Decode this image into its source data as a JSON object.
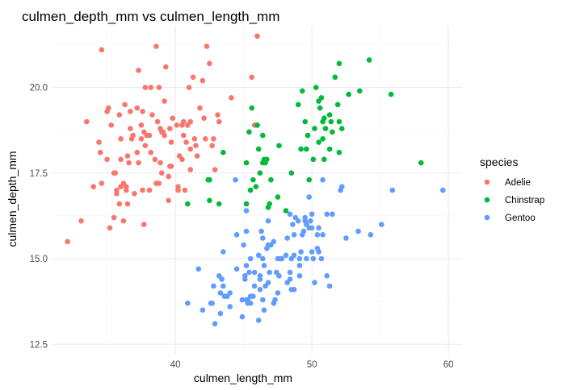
{
  "chart_data": {
    "type": "scatter",
    "title": "culmen_depth_mm vs culmen_length_mm",
    "xlabel": "culmen_length_mm",
    "ylabel": "culmen_depth_mm",
    "xlim": [
      31.0,
      61.0
    ],
    "ylim": [
      12.2,
      21.8
    ],
    "x_ticks": [
      40,
      50,
      60
    ],
    "y_ticks": [
      12.5,
      15.0,
      17.5,
      20.0
    ],
    "y_tick_labels": [
      "12.5",
      "15.0",
      "17.5",
      "20.0"
    ],
    "grid": true,
    "legend": {
      "title": "species",
      "position": "right"
    },
    "series": [
      {
        "name": "Adelie",
        "color": "#F8766D",
        "points": [
          [
            32.1,
            15.5
          ],
          [
            33.1,
            16.1
          ],
          [
            33.5,
            19.0
          ],
          [
            34.0,
            17.1
          ],
          [
            34.4,
            18.4
          ],
          [
            34.5,
            18.1
          ],
          [
            34.6,
            21.1
          ],
          [
            34.6,
            17.2
          ],
          [
            35.0,
            17.9
          ],
          [
            35.0,
            19.3
          ],
          [
            35.1,
            19.4
          ],
          [
            35.2,
            15.9
          ],
          [
            35.3,
            18.9
          ],
          [
            35.5,
            16.2
          ],
          [
            35.5,
            17.5
          ],
          [
            35.6,
            17.5
          ],
          [
            35.7,
            16.9
          ],
          [
            35.7,
            17.0
          ],
          [
            35.9,
            16.6
          ],
          [
            35.9,
            19.2
          ],
          [
            36.0,
            18.5
          ],
          [
            36.0,
            17.9
          ],
          [
            36.0,
            17.1
          ],
          [
            36.2,
            16.1
          ],
          [
            36.2,
            17.2
          ],
          [
            36.3,
            19.5
          ],
          [
            36.4,
            17.0
          ],
          [
            36.4,
            17.1
          ],
          [
            36.5,
            18.0
          ],
          [
            36.5,
            16.6
          ],
          [
            36.6,
            17.8
          ],
          [
            36.7,
            19.3
          ],
          [
            36.7,
            18.8
          ],
          [
            36.8,
            18.5
          ],
          [
            36.9,
            18.6
          ],
          [
            37.0,
            16.9
          ],
          [
            37.2,
            18.1
          ],
          [
            37.2,
            19.4
          ],
          [
            37.3,
            20.5
          ],
          [
            37.3,
            17.8
          ],
          [
            37.5,
            18.9
          ],
          [
            37.5,
            18.5
          ],
          [
            37.6,
            19.3
          ],
          [
            37.6,
            17.0
          ],
          [
            37.7,
            18.7
          ],
          [
            37.7,
            16.0
          ],
          [
            37.8,
            18.3
          ],
          [
            37.8,
            20.0
          ],
          [
            37.9,
            18.6
          ],
          [
            38.1,
            18.6
          ],
          [
            38.1,
            17.0
          ],
          [
            38.2,
            18.1
          ],
          [
            38.2,
            20.0
          ],
          [
            38.3,
            19.2
          ],
          [
            38.5,
            17.9
          ],
          [
            38.6,
            21.2
          ],
          [
            38.6,
            17.2
          ],
          [
            38.7,
            19.0
          ],
          [
            38.8,
            17.2
          ],
          [
            38.8,
            20.0
          ],
          [
            38.9,
            17.8
          ],
          [
            38.9,
            18.8
          ],
          [
            39.0,
            17.5
          ],
          [
            39.0,
            18.7
          ],
          [
            39.1,
            18.7
          ],
          [
            39.2,
            19.6
          ],
          [
            39.2,
            18.6
          ],
          [
            39.3,
            20.6
          ],
          [
            39.5,
            17.4
          ],
          [
            39.5,
            16.7
          ],
          [
            39.6,
            17.7
          ],
          [
            39.6,
            18.8
          ],
          [
            39.7,
            18.4
          ],
          [
            39.7,
            17.7
          ],
          [
            39.8,
            19.1
          ],
          [
            40.1,
            18.9
          ],
          [
            40.2,
            17.0
          ],
          [
            40.2,
            17.1
          ],
          [
            40.3,
            18.0
          ],
          [
            40.5,
            17.9
          ],
          [
            40.5,
            18.9
          ],
          [
            40.6,
            18.6
          ],
          [
            40.6,
            19.0
          ],
          [
            40.7,
            17.0
          ],
          [
            40.8,
            18.4
          ],
          [
            40.9,
            18.9
          ],
          [
            41.0,
            20.0
          ],
          [
            41.1,
            17.6
          ],
          [
            41.1,
            19.0
          ],
          [
            41.1,
            18.2
          ],
          [
            41.3,
            20.3
          ],
          [
            41.4,
            18.5
          ],
          [
            41.5,
            18.3
          ],
          [
            41.6,
            18.0
          ],
          [
            41.8,
            19.4
          ],
          [
            42.0,
            20.2
          ],
          [
            42.1,
            19.1
          ],
          [
            42.2,
            18.5
          ],
          [
            42.3,
            21.2
          ],
          [
            42.5,
            20.7
          ],
          [
            42.7,
            18.3
          ],
          [
            42.8,
            18.5
          ],
          [
            42.9,
            17.6
          ],
          [
            43.1,
            19.2
          ],
          [
            43.2,
            19.0
          ],
          [
            44.1,
            19.7
          ],
          [
            45.6,
            20.3
          ],
          [
            45.8,
            18.9
          ],
          [
            46.0,
            21.5
          ],
          [
            46.0,
            18.9
          ]
        ]
      },
      {
        "name": "Chinstrap",
        "color": "#00BA38",
        "points": [
          [
            40.9,
            16.6
          ],
          [
            42.4,
            17.3
          ],
          [
            42.5,
            17.3
          ],
          [
            42.5,
            16.7
          ],
          [
            43.2,
            16.6
          ],
          [
            43.5,
            18.1
          ],
          [
            45.2,
            17.8
          ],
          [
            45.2,
            16.6
          ],
          [
            45.4,
            18.7
          ],
          [
            45.5,
            17.0
          ],
          [
            45.6,
            19.4
          ],
          [
            45.7,
            17.3
          ],
          [
            45.9,
            17.1
          ],
          [
            46.0,
            18.9
          ],
          [
            46.1,
            18.2
          ],
          [
            46.2,
            17.5
          ],
          [
            46.4,
            18.6
          ],
          [
            46.4,
            17.8
          ],
          [
            46.5,
            17.9
          ],
          [
            46.6,
            17.8
          ],
          [
            46.7,
            17.9
          ],
          [
            46.8,
            16.5
          ],
          [
            46.9,
            16.6
          ],
          [
            47.0,
            17.3
          ],
          [
            47.5,
            16.8
          ],
          [
            47.6,
            18.3
          ],
          [
            48.1,
            16.4
          ],
          [
            48.5,
            17.5
          ],
          [
            49.0,
            19.5
          ],
          [
            49.2,
            18.2
          ],
          [
            49.3,
            19.9
          ],
          [
            49.5,
            19.0
          ],
          [
            49.6,
            18.2
          ],
          [
            49.7,
            18.6
          ],
          [
            49.8,
            17.3
          ],
          [
            50.1,
            17.9
          ],
          [
            50.2,
            18.8
          ],
          [
            50.3,
            20.0
          ],
          [
            50.5,
            18.4
          ],
          [
            50.5,
            19.6
          ],
          [
            50.6,
            19.4
          ],
          [
            50.7,
            19.7
          ],
          [
            50.8,
            18.5
          ],
          [
            50.8,
            19.0
          ],
          [
            50.9,
            17.9
          ],
          [
            50.9,
            19.1
          ],
          [
            51.0,
            18.8
          ],
          [
            51.3,
            19.2
          ],
          [
            51.3,
            18.2
          ],
          [
            51.4,
            19.0
          ],
          [
            51.5,
            18.7
          ],
          [
            51.7,
            20.3
          ],
          [
            51.9,
            19.5
          ],
          [
            52.0,
            18.1
          ],
          [
            52.0,
            19.0
          ],
          [
            52.0,
            20.7
          ],
          [
            52.2,
            18.8
          ],
          [
            52.7,
            19.8
          ],
          [
            53.5,
            19.9
          ],
          [
            54.2,
            20.8
          ],
          [
            55.8,
            19.8
          ],
          [
            58.0,
            17.8
          ]
        ]
      },
      {
        "name": "Gentoo",
        "color": "#619CFF",
        "points": [
          [
            40.9,
            13.7
          ],
          [
            41.7,
            14.7
          ],
          [
            42.0,
            13.5
          ],
          [
            42.6,
            13.7
          ],
          [
            42.7,
            13.7
          ],
          [
            42.8,
            14.2
          ],
          [
            42.9,
            13.1
          ],
          [
            43.2,
            14.5
          ],
          [
            43.3,
            14.0
          ],
          [
            43.3,
            13.4
          ],
          [
            43.4,
            14.4
          ],
          [
            43.5,
            14.2
          ],
          [
            43.5,
            15.2
          ],
          [
            43.6,
            13.9
          ],
          [
            43.8,
            13.9
          ],
          [
            44.0,
            13.6
          ],
          [
            44.4,
            17.3
          ],
          [
            44.5,
            14.7
          ],
          [
            44.5,
            15.7
          ],
          [
            44.9,
            13.8
          ],
          [
            44.9,
            13.3
          ],
          [
            45.0,
            15.4
          ],
          [
            45.1,
            14.5
          ],
          [
            45.1,
            14.4
          ],
          [
            45.2,
            13.8
          ],
          [
            45.2,
            14.8
          ],
          [
            45.2,
            15.8
          ],
          [
            45.2,
            16.4
          ],
          [
            45.3,
            13.8
          ],
          [
            45.3,
            13.7
          ],
          [
            45.4,
            14.6
          ],
          [
            45.5,
            13.7
          ],
          [
            45.5,
            13.9
          ],
          [
            45.5,
            15.0
          ],
          [
            45.7,
            13.9
          ],
          [
            45.8,
            14.2
          ],
          [
            45.8,
            14.6
          ],
          [
            46.1,
            13.2
          ],
          [
            46.1,
            15.1
          ],
          [
            46.2,
            14.1
          ],
          [
            46.2,
            14.5
          ],
          [
            46.2,
            14.4
          ],
          [
            46.3,
            15.8
          ],
          [
            46.4,
            15.0
          ],
          [
            46.4,
            15.6
          ],
          [
            46.5,
            13.5
          ],
          [
            46.5,
            14.8
          ],
          [
            46.6,
            14.2
          ],
          [
            46.7,
            15.3
          ],
          [
            46.8,
            15.4
          ],
          [
            46.8,
            14.3
          ],
          [
            46.8,
            16.1
          ],
          [
            46.9,
            14.6
          ],
          [
            47.2,
            13.7
          ],
          [
            47.2,
            15.5
          ],
          [
            47.3,
            13.8
          ],
          [
            47.4,
            14.6
          ],
          [
            47.5,
            14.0
          ],
          [
            47.5,
            15.0
          ],
          [
            47.6,
            14.5
          ],
          [
            47.7,
            15.0
          ],
          [
            47.8,
            15.0
          ],
          [
            48.1,
            15.1
          ],
          [
            48.2,
            14.3
          ],
          [
            48.2,
            15.6
          ],
          [
            48.4,
            14.6
          ],
          [
            48.4,
            14.4
          ],
          [
            48.4,
            16.3
          ],
          [
            48.5,
            14.1
          ],
          [
            48.5,
            15.0
          ],
          [
            48.6,
            16.0
          ],
          [
            48.7,
            14.1
          ],
          [
            48.7,
            15.1
          ],
          [
            48.7,
            15.7
          ],
          [
            48.8,
            16.2
          ],
          [
            49.0,
            16.1
          ],
          [
            49.1,
            14.5
          ],
          [
            49.1,
            14.8
          ],
          [
            49.1,
            15.0
          ],
          [
            49.2,
            15.2
          ],
          [
            49.3,
            15.7
          ],
          [
            49.4,
            15.8
          ],
          [
            49.5,
            16.1
          ],
          [
            49.5,
            16.2
          ],
          [
            49.6,
            15.0
          ],
          [
            49.6,
            16.0
          ],
          [
            49.8,
            15.9
          ],
          [
            49.8,
            16.8
          ],
          [
            49.9,
            16.1
          ],
          [
            50.0,
            15.2
          ],
          [
            50.0,
            15.9
          ],
          [
            50.0,
            16.3
          ],
          [
            50.1,
            15.0
          ],
          [
            50.2,
            14.3
          ],
          [
            50.4,
            15.3
          ],
          [
            50.4,
            15.7
          ],
          [
            50.5,
            15.2
          ],
          [
            50.5,
            15.9
          ],
          [
            50.7,
            15.0
          ],
          [
            50.8,
            15.7
          ],
          [
            50.8,
            17.3
          ],
          [
            51.1,
            14.5
          ],
          [
            51.1,
            16.3
          ],
          [
            51.3,
            14.2
          ],
          [
            51.5,
            16.3
          ],
          [
            52.1,
            17.0
          ],
          [
            52.2,
            17.1
          ],
          [
            52.5,
            15.6
          ],
          [
            53.4,
            15.8
          ],
          [
            54.3,
            15.7
          ],
          [
            55.1,
            16.0
          ],
          [
            55.9,
            17.0
          ],
          [
            59.6,
            17.0
          ],
          [
            46.4,
            13.8
          ],
          [
            47.0,
            15.4
          ],
          [
            44.0,
            14.0
          ]
        ]
      }
    ]
  }
}
